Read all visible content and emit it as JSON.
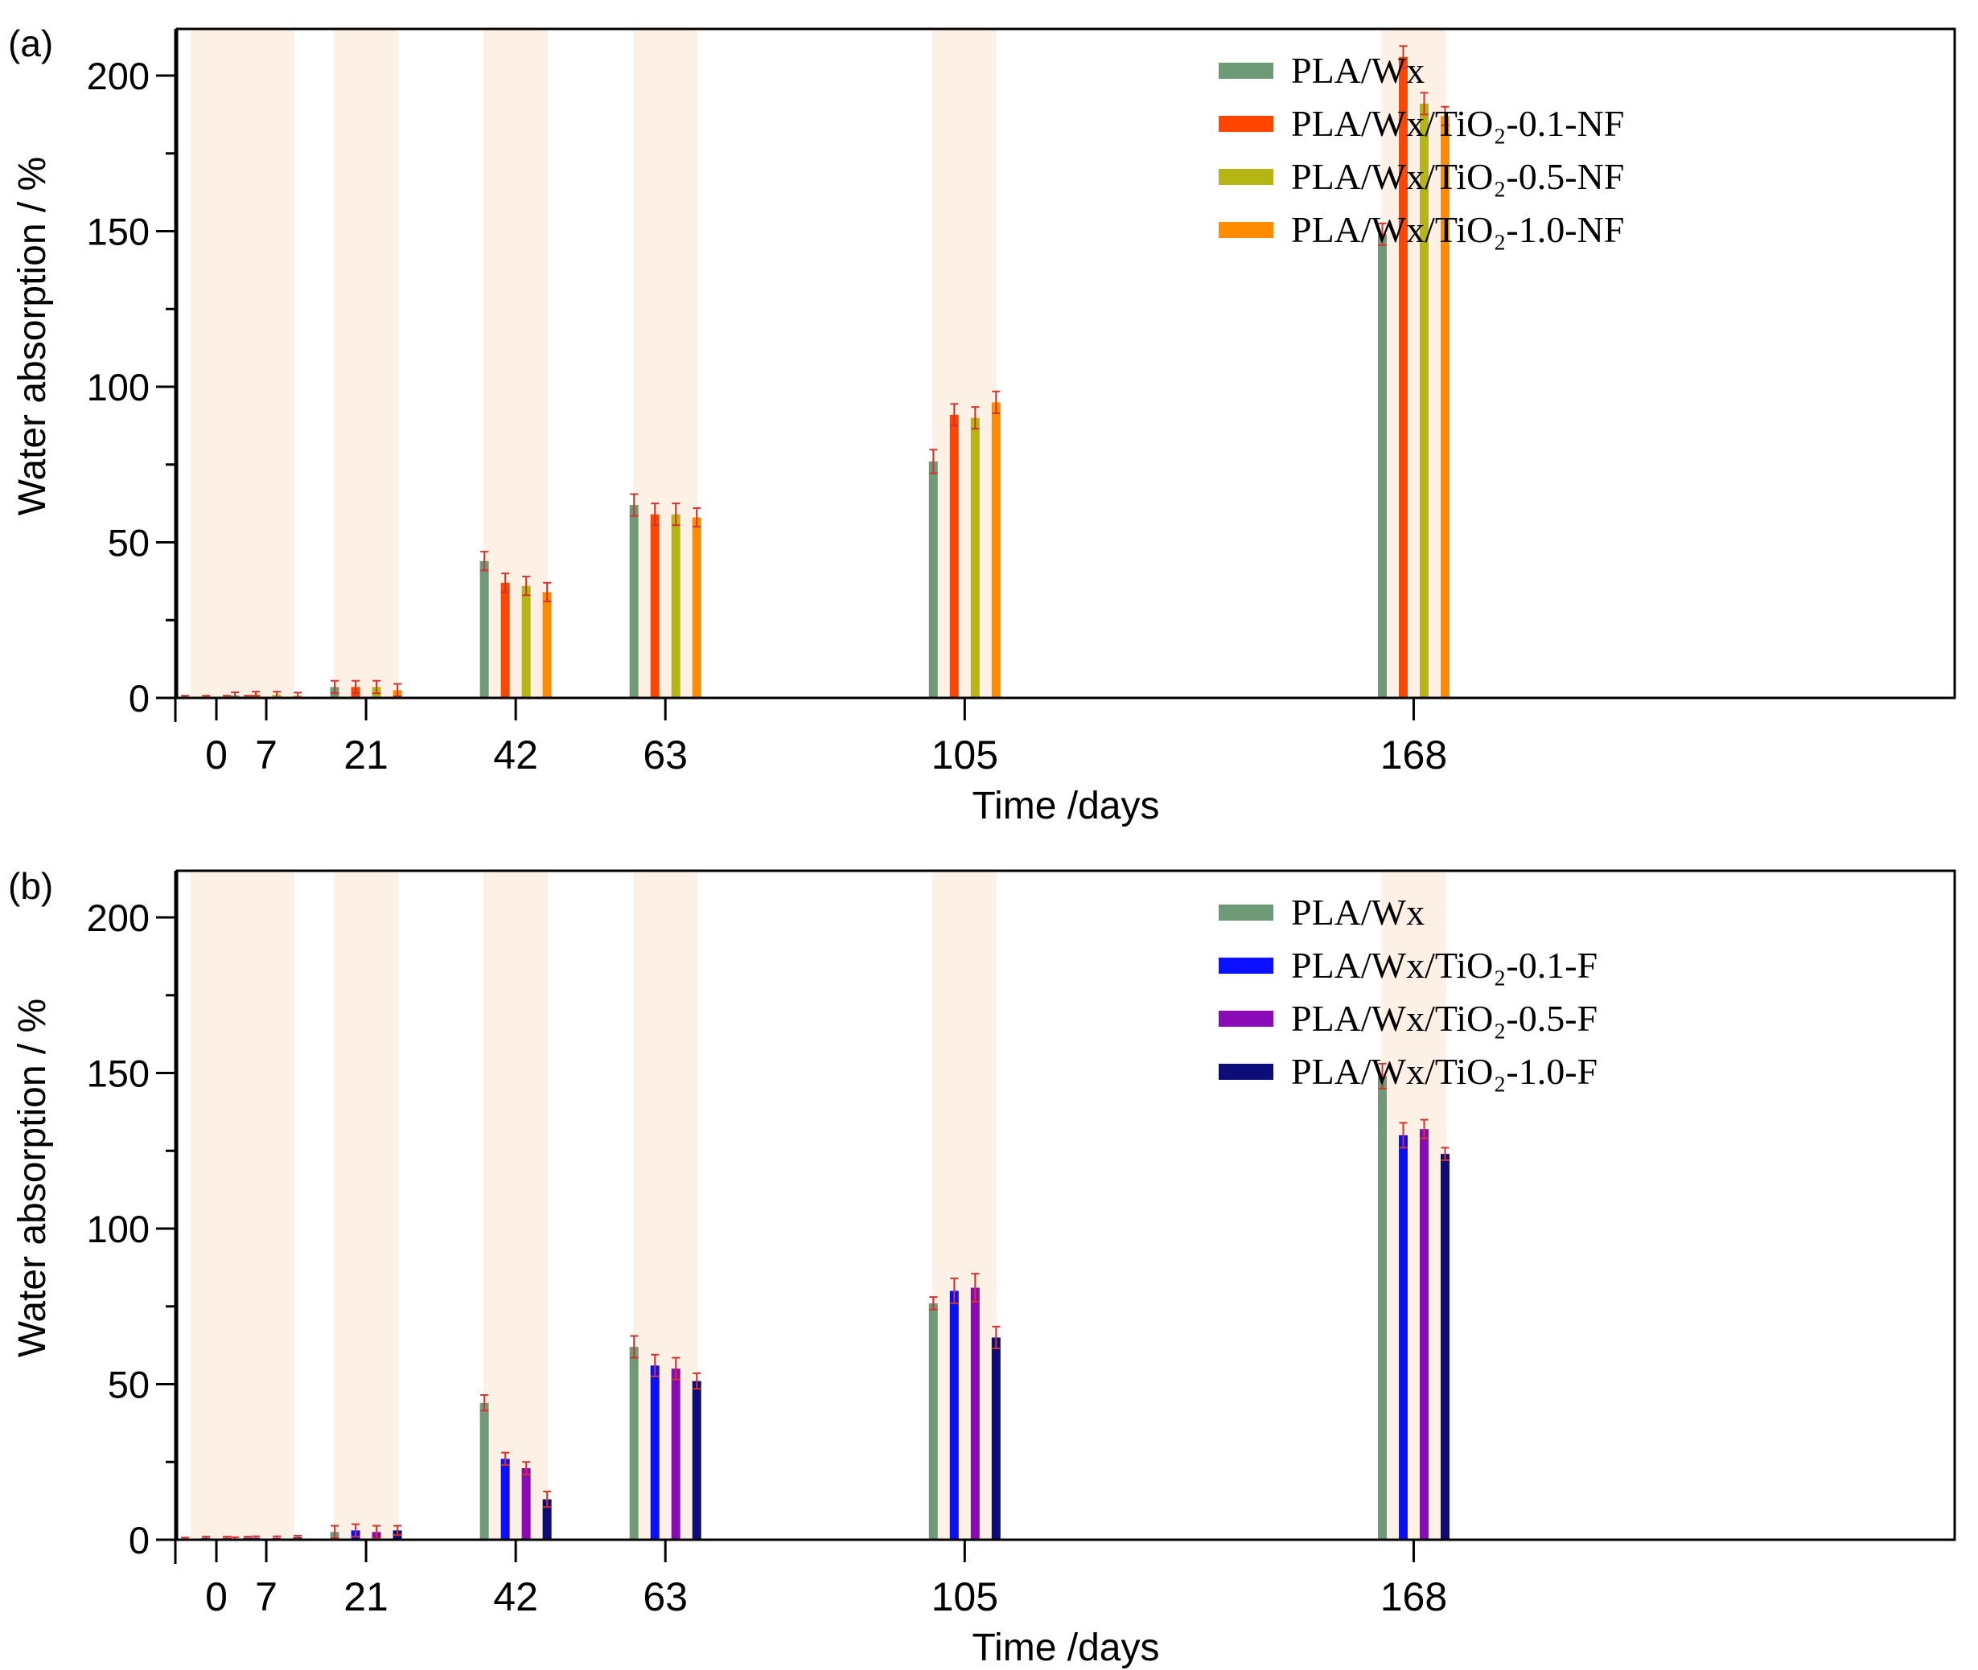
{
  "chart_data": [
    {
      "panel_label": "(a)",
      "type": "bar",
      "title": "",
      "xlabel": "Time /days",
      "ylabel": "Water absorption  / %",
      "ylim": [
        0,
        215
      ],
      "yticks": [
        0,
        50,
        100,
        150,
        200
      ],
      "categories": [
        "0",
        "7",
        "21",
        "42",
        "63",
        "105",
        "168"
      ],
      "x_days": [
        0,
        7,
        21,
        42,
        63,
        105,
        168
      ],
      "legend_position": "top-right",
      "highlight_color": "#fdf1e6",
      "errorbar_color": "#d9302a",
      "series": [
        {
          "name": "PLA/Wx",
          "color": "#6f9a78",
          "values": [
            0.3,
            0.8,
            3.5,
            44,
            62,
            76,
            149
          ],
          "errors": [
            0.4,
            1.0,
            2.0,
            3.0,
            3.5,
            3.8,
            3.5
          ]
        },
        {
          "name": "PLA/Wx/TiO₂-0.1-NF",
          "color": "#ff4500",
          "values": [
            0.3,
            1.0,
            3.5,
            37,
            59,
            91,
            206
          ],
          "errors": [
            0.4,
            1.0,
            2.0,
            3.0,
            3.5,
            3.5,
            3.5
          ]
        },
        {
          "name": "PLA/Wx/TiO₂-0.5-NF",
          "color": "#b5b513",
          "values": [
            0.3,
            1.0,
            3.5,
            36,
            59,
            90,
            191
          ],
          "errors": [
            0.4,
            1.0,
            2.0,
            3.0,
            3.5,
            3.5,
            3.5
          ]
        },
        {
          "name": "PLA/Wx/TiO₂-1.0-NF",
          "color": "#ff8c00",
          "values": [
            0.3,
            0.7,
            2.5,
            34,
            58,
            95,
            187
          ],
          "errors": [
            0.4,
            1.0,
            2.0,
            3.0,
            3.0,
            3.5,
            3.0
          ]
        }
      ]
    },
    {
      "panel_label": "(b)",
      "type": "bar",
      "title": "",
      "xlabel": "Time /days",
      "ylabel": "Water absorption / %",
      "ylim": [
        0,
        215
      ],
      "yticks": [
        0,
        50,
        100,
        150,
        200
      ],
      "categories": [
        "0",
        "7",
        "21",
        "42",
        "63",
        "105",
        "168"
      ],
      "x_days": [
        0,
        7,
        21,
        42,
        63,
        105,
        168
      ],
      "legend_position": "top-right",
      "highlight_color": "#fdf1e6",
      "errorbar_color": "#d9302a",
      "series": [
        {
          "name": "PLA/Wx",
          "color": "#6f9a78",
          "values": [
            0.3,
            0.3,
            2.5,
            44,
            62,
            76,
            149
          ],
          "errors": [
            0.4,
            0.5,
            2.0,
            2.5,
            3.5,
            2.0,
            4.0
          ]
        },
        {
          "name": "PLA/Wx/TiO₂-0.1-F",
          "color": "#0a10ff",
          "values": [
            0.6,
            0.6,
            3.0,
            26,
            56,
            80,
            130
          ],
          "errors": [
            0.4,
            0.5,
            2.0,
            2.0,
            3.5,
            4.0,
            4.0
          ]
        },
        {
          "name": "PLA/Wx/TiO₂-0.5-F",
          "color": "#8b0ab8",
          "values": [
            0.6,
            0.6,
            2.5,
            23,
            55,
            81,
            132
          ],
          "errors": [
            0.4,
            0.5,
            2.0,
            2.0,
            3.5,
            4.5,
            3.0
          ]
        },
        {
          "name": "PLA/Wx/TiO₂-1.0-F",
          "color": "#0c0c7a",
          "values": [
            0.6,
            0.8,
            3.0,
            13,
            51,
            65,
            124
          ],
          "errors": [
            0.4,
            0.5,
            1.5,
            2.5,
            2.5,
            3.5,
            2.0
          ]
        }
      ]
    }
  ]
}
